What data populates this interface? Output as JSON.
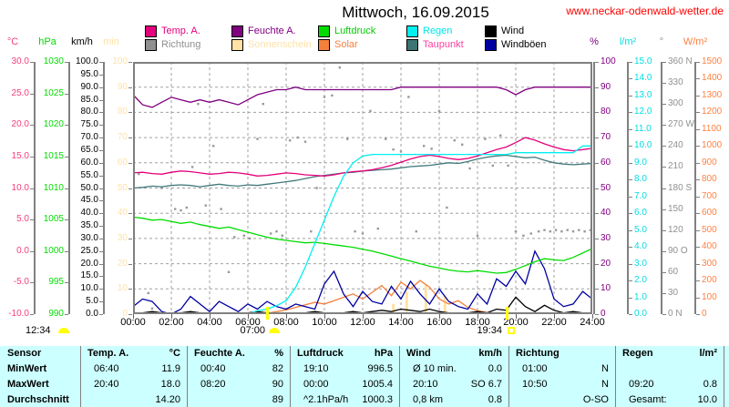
{
  "header": {
    "title": "Mittwoch, 16.09.2015",
    "website": "www.neckar-odenwald-wetter.de"
  },
  "colors": {
    "website": "#ff0000",
    "frame": "#808080",
    "grid": "#a0a0a0",
    "sun": "#ffff00",
    "table_bg": "#ccffff",
    "table_line": "#808080"
  },
  "legend": {
    "columns": [
      [
        {
          "label": "Temp. A.",
          "swatch": "#e4007c",
          "text": "#e4007c"
        },
        {
          "label": "Richtung",
          "swatch": "#909090",
          "text": "#909090"
        }
      ],
      [
        {
          "label": "Feuchte A.",
          "swatch": "#800080",
          "text": "#800080"
        },
        {
          "label": "Sonnenschein",
          "swatch": "#ffe2a6",
          "text": "#ffe2a6"
        }
      ],
      [
        {
          "label": "Luftdruck",
          "swatch": "#00dc00",
          "text": "#00cc00"
        },
        {
          "label": "Solar",
          "swatch": "#f4803c",
          "text": "#f4803c"
        }
      ],
      [
        {
          "label": "Regen",
          "swatch": "#00f0f0",
          "text": "#00e5e5"
        },
        {
          "label": "Taupunkt",
          "swatch": "#3d7373",
          "text": "#ff40a0"
        }
      ],
      [
        {
          "label": "Wind",
          "swatch": "#000000",
          "text": "#000000"
        },
        {
          "label": "Windböen",
          "swatch": "#0000a0",
          "text": "#000000"
        }
      ]
    ]
  },
  "axes": {
    "left": [
      {
        "unit": "°C",
        "color": "#f53e7c",
        "labels": [
          "30.0",
          "25.0",
          "20.0",
          "15.0",
          "10.0",
          "5.0",
          "0.0",
          "-5.0",
          "-10.0"
        ]
      },
      {
        "unit": "hPa",
        "color": "#00dc00",
        "labels": [
          "1030",
          "1025",
          "1020",
          "1015",
          "1010",
          "1005",
          "1000",
          "995",
          "990"
        ]
      },
      {
        "unit": "km/h",
        "color": "#000000",
        "labels": [
          "100.0",
          "95.0",
          "90.0",
          "85.0",
          "80.0",
          "75.0",
          "70.0",
          "65.0",
          "60.0",
          "55.0",
          "50.0",
          "45.0",
          "40.0",
          "35.0",
          "30.0",
          "25.0",
          "20.0",
          "15.0",
          "10.0",
          "5.0",
          "0.0"
        ]
      },
      {
        "unit": "min",
        "color": "#ffe2a6",
        "labels": [
          "100",
          "90",
          "80",
          "70",
          "60",
          "50",
          "40",
          "30",
          "20",
          "10",
          "0"
        ]
      }
    ],
    "right": [
      {
        "unit": "%",
        "color": "#800080",
        "labels": [
          "100",
          "90",
          "80",
          "70",
          "60",
          "50",
          "40",
          "30",
          "20",
          "10",
          "0"
        ]
      },
      {
        "unit": "l/m²",
        "color": "#00dde5",
        "labels": [
          "15.0",
          "14.0",
          "13.0",
          "12.0",
          "11.0",
          "10.0",
          "9.0",
          "8.0",
          "7.0",
          "6.0",
          "5.0",
          "4.0",
          "3.0",
          "2.0",
          "1.0",
          "0.0"
        ]
      },
      {
        "unit": "°",
        "color": "#909090",
        "labels": [
          "360 N",
          "330",
          "300",
          "270 W",
          "240",
          "210",
          "180 S",
          "150",
          "120",
          "90 O",
          "60",
          "30",
          "0 N"
        ]
      },
      {
        "unit": "W/m²",
        "color": "#ff8040",
        "labels": [
          "1500",
          "1400",
          "1300",
          "1200",
          "1100",
          "1000",
          "900",
          "800",
          "700",
          "600",
          "500",
          "400",
          "300",
          "200",
          "100",
          "0"
        ]
      }
    ],
    "x": {
      "labels": [
        "00:00",
        "02:00",
        "04:00",
        "06:00",
        "08:00",
        "10:00",
        "12:00",
        "14:00",
        "16:00",
        "18:00",
        "20:00",
        "22:00",
        "24:00"
      ]
    }
  },
  "markers": {
    "time_label": "12:34",
    "sunrise": {
      "time": "07:00",
      "hour": 7.0
    },
    "sunset": {
      "time": "19:34",
      "hour": 19.57
    }
  },
  "chart_data": {
    "type": "line",
    "title": "Mittwoch, 16.09.2015",
    "x_range_hours": [
      0,
      24
    ],
    "x_step_hours": 0.5,
    "grid": {
      "v_hours": [
        2,
        4,
        6,
        8,
        10,
        12,
        14,
        16,
        18,
        20,
        22
      ],
      "h_pct": [
        10,
        20,
        30,
        40,
        50,
        60,
        70,
        80,
        90
      ]
    },
    "series": [
      {
        "name": "Sonnenschein",
        "unit": "min",
        "color": "#ffe2a6",
        "axis": [
          0,
          100
        ],
        "type": "bars",
        "points": [
          [
            13.6,
            4
          ],
          [
            14.3,
            9
          ],
          [
            15.3,
            12
          ],
          [
            16.3,
            7
          ]
        ]
      },
      {
        "name": "Richtung",
        "unit": "°",
        "color": "#999999",
        "axis": [
          0,
          360
        ],
        "type": "dots",
        "points": [
          [
            0.3,
            200
          ],
          [
            0.8,
            30
          ],
          [
            1.0,
            8
          ],
          [
            1.5,
            180
          ],
          [
            2.2,
            150
          ],
          [
            2.5,
            148
          ],
          [
            2.8,
            152
          ],
          [
            3.1,
            210
          ],
          [
            3.4,
            300
          ],
          [
            3.8,
            155
          ],
          [
            4.2,
            240
          ],
          [
            4.6,
            150
          ],
          [
            5.0,
            60
          ],
          [
            5.3,
            110
          ],
          [
            5.8,
            112
          ],
          [
            6.1,
            108
          ],
          [
            6.5,
            250
          ],
          [
            6.8,
            300
          ],
          [
            7.2,
            115
          ],
          [
            7.5,
            118
          ],
          [
            7.8,
            112
          ],
          [
            8.2,
            248
          ],
          [
            8.6,
            252
          ],
          [
            9.0,
            246
          ],
          [
            9.3,
            118
          ],
          [
            9.6,
            180
          ],
          [
            10.0,
            310
          ],
          [
            10.4,
            312
          ],
          [
            10.8,
            352
          ],
          [
            11.2,
            250
          ],
          [
            11.6,
            118
          ],
          [
            12.0,
            115
          ],
          [
            12.4,
            290
          ],
          [
            12.8,
            122
          ],
          [
            13.2,
            250
          ],
          [
            13.6,
            235
          ],
          [
            14.0,
            232
          ],
          [
            14.4,
            310
          ],
          [
            14.8,
            118
          ],
          [
            15.2,
            240
          ],
          [
            15.6,
            236
          ],
          [
            16.0,
            290
          ],
          [
            16.4,
            152
          ],
          [
            16.8,
            248
          ],
          [
            17.2,
            242
          ],
          [
            17.6,
            208
          ],
          [
            18.0,
            112
          ],
          [
            18.4,
            250
          ],
          [
            18.8,
            212
          ],
          [
            19.2,
            255
          ],
          [
            19.6,
            212
          ],
          [
            20.0,
            118
          ],
          [
            20.4,
            112
          ],
          [
            20.8,
            115
          ],
          [
            21.2,
            118
          ],
          [
            21.5,
            120
          ],
          [
            21.8,
            118
          ],
          [
            22.1,
            120
          ],
          [
            22.4,
            118
          ],
          [
            22.7,
            120
          ],
          [
            23.0,
            118
          ],
          [
            23.3,
            120
          ],
          [
            23.6,
            118
          ],
          [
            23.9,
            120
          ]
        ]
      },
      {
        "name": "Solar",
        "unit": "W/m²",
        "color": "#f4803c",
        "axis": [
          0,
          1500
        ],
        "type": "line",
        "values": [
          0,
          0,
          0,
          0,
          0,
          0,
          0,
          0,
          0,
          0,
          0,
          0,
          0,
          0,
          5,
          15,
          25,
          40,
          55,
          70,
          60,
          80,
          100,
          120,
          90,
          130,
          170,
          110,
          190,
          150,
          200,
          160,
          90,
          60,
          80,
          40,
          20,
          10,
          5,
          0,
          0,
          0,
          0,
          0,
          0,
          0,
          0,
          0,
          0
        ]
      },
      {
        "name": "Windböen",
        "unit": "km/h",
        "color": "#0000a0",
        "axis": [
          0,
          100
        ],
        "type": "line",
        "values": [
          3,
          6,
          5,
          1,
          0,
          2,
          7,
          4,
          1,
          5,
          3,
          1,
          4,
          2,
          5,
          3,
          2,
          4,
          3,
          2,
          12,
          17,
          8,
          3,
          9,
          5,
          4,
          11,
          6,
          13,
          8,
          4,
          10,
          5,
          3,
          2,
          8,
          4,
          14,
          11,
          17,
          12,
          25,
          18,
          6,
          3,
          4,
          9,
          6
        ]
      },
      {
        "name": "Wind",
        "unit": "km/h",
        "color": "#000000",
        "axis": [
          0,
          100
        ],
        "type": "line",
        "values": [
          0,
          0.5,
          1.0,
          0.5,
          0,
          0.5,
          1.0,
          0.5,
          0,
          0.5,
          0.5,
          0,
          0.5,
          1.0,
          0.5,
          0,
          0.5,
          0,
          0.5,
          1.0,
          0.5,
          0,
          0.5,
          1.0,
          0.5,
          1.0,
          1.5,
          1.0,
          2.0,
          1.5,
          1.0,
          2.0,
          1.0,
          0.5,
          0,
          0.5,
          1.0,
          0.5,
          2.0,
          1.5,
          6.7,
          3.0,
          1.0,
          3.5,
          1.5,
          0.5,
          1.0,
          0.5,
          0
        ]
      },
      {
        "name": "Luftdruck",
        "unit": "hPa",
        "color": "#00dc00",
        "axis": [
          990,
          1030
        ],
        "type": "line",
        "values": [
          1005.4,
          1005.2,
          1004.9,
          1005.0,
          1004.7,
          1004.4,
          1004.6,
          1004.2,
          1003.9,
          1003.6,
          1003.8,
          1003.4,
          1003.0,
          1002.6,
          1002.2,
          1001.9,
          1001.7,
          1001.5,
          1001.3,
          1001.4,
          1001.2,
          1001.0,
          1000.8,
          1000.6,
          1000.3,
          1000.0,
          999.6,
          999.2,
          998.8,
          998.4,
          998.0,
          997.6,
          997.3,
          997.0,
          996.8,
          996.7,
          996.9,
          996.7,
          996.5,
          996.6,
          997.1,
          997.7,
          998.3,
          998.8,
          998.6,
          998.5,
          999.0,
          999.7,
          1000.4
        ]
      },
      {
        "name": "Taupunkt",
        "unit": "°C",
        "color": "#41787b",
        "axis": [
          -10,
          30
        ],
        "type": "line",
        "values": [
          10.0,
          10.1,
          10.3,
          10.2,
          10.4,
          10.5,
          10.4,
          10.2,
          10.4,
          10.6,
          10.4,
          10.3,
          10.5,
          10.4,
          10.6,
          10.8,
          11.0,
          11.2,
          11.5,
          11.8,
          12.0,
          12.2,
          12.4,
          12.5,
          12.7,
          12.8,
          12.9,
          13.0,
          13.2,
          13.4,
          13.5,
          13.6,
          13.8,
          14.0,
          13.9,
          14.2,
          14.6,
          14.9,
          15.1,
          15.2,
          15.0,
          14.8,
          14.9,
          14.4,
          14.0,
          13.8,
          13.7,
          13.8,
          13.9
        ]
      },
      {
        "name": "Feuchte A.",
        "unit": "%",
        "color": "#800080",
        "axis": [
          0,
          100
        ],
        "type": "line",
        "values": [
          87,
          83,
          82,
          84,
          86,
          85,
          84,
          85,
          84,
          85,
          84,
          83,
          85,
          87,
          88,
          89,
          89,
          90,
          89,
          89,
          89,
          89,
          89,
          89,
          89,
          89,
          89,
          89,
          90,
          90,
          90,
          90,
          90,
          90,
          90,
          90,
          90,
          90,
          90,
          89,
          87,
          89,
          90,
          90,
          90,
          90,
          90,
          90,
          90
        ]
      },
      {
        "name": "Temp. A.",
        "unit": "°C",
        "color": "#e4007c",
        "axis": [
          -10,
          30
        ],
        "type": "line",
        "values": [
          12.4,
          12.5,
          12.3,
          12.2,
          12.5,
          12.7,
          12.6,
          12.4,
          12.2,
          12.3,
          12.5,
          12.4,
          12.2,
          11.9,
          12.0,
          12.2,
          12.4,
          12.3,
          12.1,
          12.0,
          11.9,
          12.1,
          12.4,
          12.6,
          12.7,
          12.9,
          13.2,
          13.6,
          14.1,
          14.6,
          15.0,
          15.2,
          15.0,
          14.7,
          14.5,
          14.7,
          15.1,
          15.6,
          16.1,
          16.5,
          17.2,
          18.0,
          17.6,
          17.0,
          16.5,
          16.1,
          15.9,
          16.1,
          16.3
        ]
      },
      {
        "name": "Regen",
        "unit": "l/m²",
        "color": "#00f0f0",
        "axis": [
          0,
          15
        ],
        "type": "line",
        "values": [
          0,
          0,
          0,
          0,
          0,
          0,
          0,
          0,
          0,
          0,
          0,
          0,
          0,
          0.2,
          0.3,
          0.5,
          0.8,
          1.6,
          2.8,
          4.2,
          5.6,
          7.0,
          8.2,
          9.0,
          9.4,
          9.5,
          9.5,
          9.5,
          9.5,
          9.5,
          9.5,
          9.5,
          9.5,
          9.5,
          9.5,
          9.5,
          9.5,
          9.5,
          9.5,
          9.5,
          9.6,
          9.6,
          9.6,
          9.6,
          9.6,
          9.6,
          9.6,
          10.0,
          10.0
        ]
      }
    ]
  },
  "table": {
    "row_headers": [
      "Sensor",
      "MinWert",
      "MaxWert",
      "Durchschnitt"
    ],
    "groups": [
      {
        "name": "Temp. A.",
        "unit": "°C",
        "rows": [
          [
            "06:40",
            "11.9"
          ],
          [
            "20:40",
            "18.0"
          ],
          [
            "",
            "14.20"
          ]
        ]
      },
      {
        "name": "Feuchte A.",
        "unit": "%",
        "rows": [
          [
            "00:40",
            "82"
          ],
          [
            "08:20",
            "90"
          ],
          [
            "",
            "89"
          ]
        ]
      },
      {
        "name": "Luftdruck",
        "unit": "hPa",
        "rows": [
          [
            "19:10",
            "996.5"
          ],
          [
            "00:00",
            "1005.4"
          ],
          [
            "^2.1hPa/h",
            "1000.3"
          ]
        ]
      },
      {
        "name": "Wind",
        "unit": "km/h",
        "rows": [
          [
            "Ø 10 min.",
            "0.0"
          ],
          [
            "20:10",
            "SO 6.7"
          ],
          [
            "0,8 km",
            "0.8"
          ]
        ]
      },
      {
        "name": "Richtung",
        "unit": "",
        "rows": [
          [
            "01:00",
            "N"
          ],
          [
            "10:50",
            "N"
          ],
          [
            "",
            "O-SO"
          ]
        ]
      },
      {
        "name": "Regen",
        "unit": "l/m²",
        "rows": [
          [
            "",
            ""
          ],
          [
            "09:20",
            "0.8"
          ],
          [
            "Gesamt:",
            "10.0"
          ]
        ]
      }
    ]
  }
}
